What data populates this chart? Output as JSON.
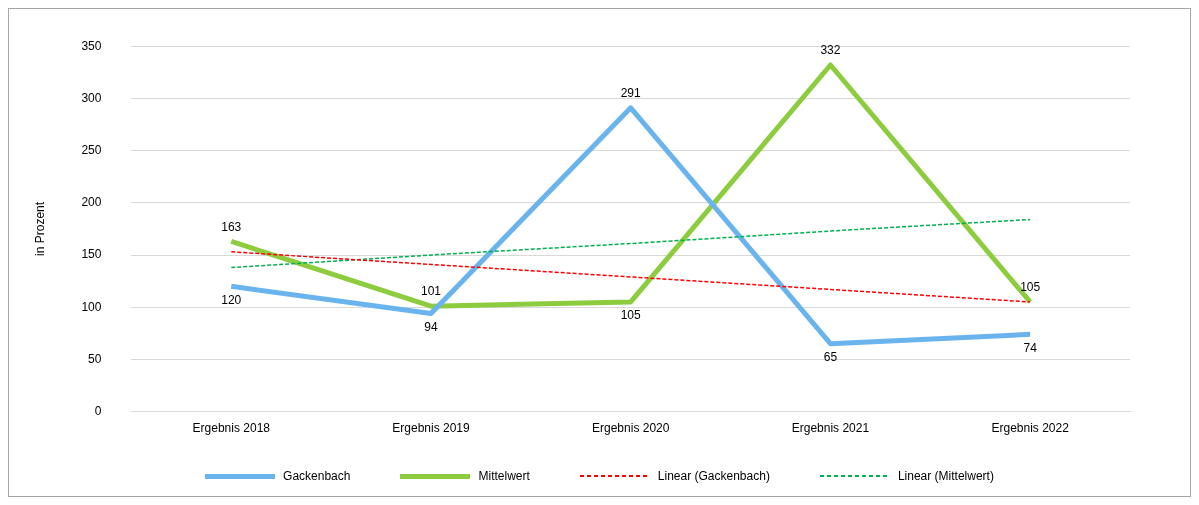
{
  "chart_data": {
    "type": "line",
    "ylabel": "in Prozent",
    "categories": [
      "Ergebnis 2018",
      "Ergebnis 2019",
      "Ergebnis 2020",
      "Ergebnis 2021",
      "Ergebnis 2022"
    ],
    "series": [
      {
        "name": "Gackenbach",
        "color": "#6ab4ee",
        "values": [
          120,
          94,
          291,
          65,
          74
        ],
        "value_labels": [
          "120",
          "94",
          "291",
          "65",
          "74"
        ]
      },
      {
        "name": "Mittelwert",
        "color": "#8dcc3e",
        "values": [
          163,
          101,
          105,
          332,
          105
        ],
        "value_labels": [
          "163",
          "101",
          "105",
          "332",
          "105"
        ]
      },
      {
        "name": "Linear (Gackenbach)",
        "color": "#ff0000",
        "values": [
          153,
          141,
          129,
          117,
          105
        ],
        "line_style": "dashed"
      },
      {
        "name": "Linear (Mittelwert)",
        "color": "#00b050",
        "values": [
          138,
          150,
          161,
          173,
          184
        ],
        "line_style": "dashed"
      }
    ],
    "ylim": [
      0,
      350
    ],
    "yticks": [
      0,
      50,
      100,
      150,
      200,
      250,
      300,
      350
    ],
    "grid": "y",
    "legend": "bottom",
    "marker": "none",
    "line_style": "solid"
  }
}
